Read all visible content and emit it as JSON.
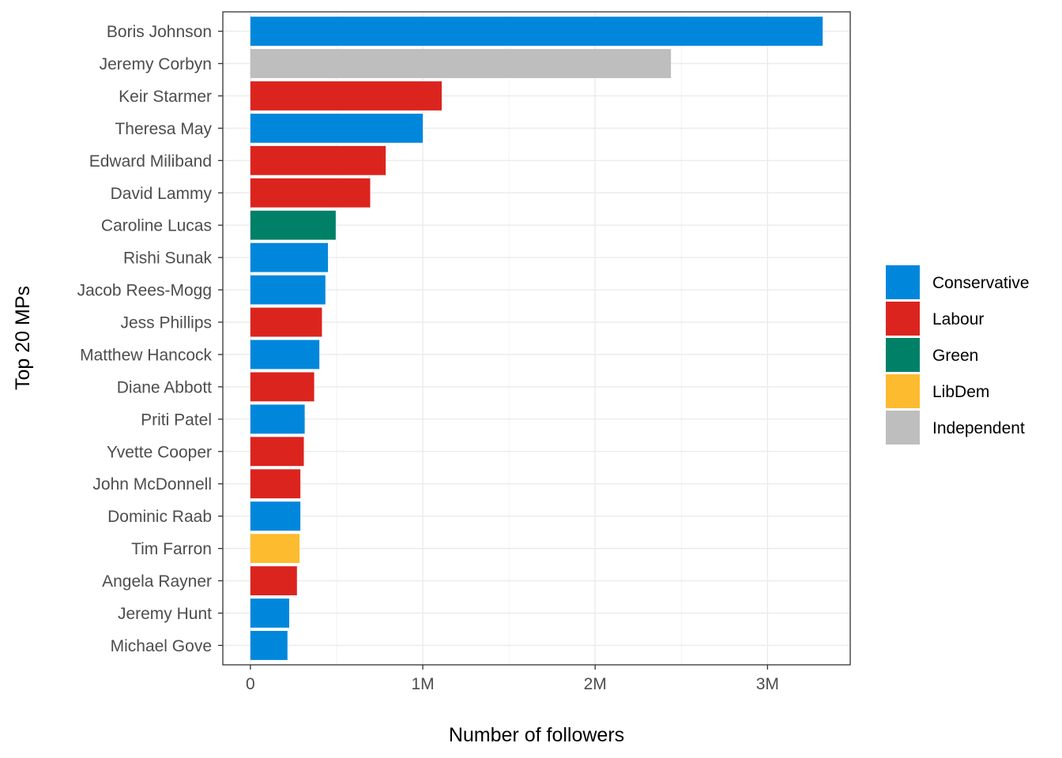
{
  "chart_data": {
    "type": "bar",
    "orientation": "horizontal",
    "xlabel": "Number of followers",
    "ylabel": "Top 20 MPs",
    "xlim": [
      -160000,
      3480000
    ],
    "x_ticks": [
      {
        "value": 0,
        "label": "0"
      },
      {
        "value": 1000000,
        "label": "1M"
      },
      {
        "value": 2000000,
        "label": "2M"
      },
      {
        "value": 3000000,
        "label": "3M"
      }
    ],
    "grid": true,
    "legend_position": "right",
    "parties": [
      {
        "name": "Conservative",
        "color": "#0087DC"
      },
      {
        "name": "Labour",
        "color": "#DC241F"
      },
      {
        "name": "Green",
        "color": "#008066"
      },
      {
        "name": "LibDem",
        "color": "#FDBB30"
      },
      {
        "name": "Independent",
        "color": "#BEBEBE"
      }
    ],
    "bars": [
      {
        "label": "Boris Johnson",
        "value": 3320000,
        "party": "Conservative"
      },
      {
        "label": "Jeremy Corbyn",
        "value": 2440000,
        "party": "Independent"
      },
      {
        "label": "Keir Starmer",
        "value": 1110000,
        "party": "Labour"
      },
      {
        "label": "Theresa May",
        "value": 1000000,
        "party": "Conservative"
      },
      {
        "label": "Edward Miliband",
        "value": 785000,
        "party": "Labour"
      },
      {
        "label": "David Lammy",
        "value": 695000,
        "party": "Labour"
      },
      {
        "label": "Caroline Lucas",
        "value": 495000,
        "party": "Green"
      },
      {
        "label": "Rishi Sunak",
        "value": 450000,
        "party": "Conservative"
      },
      {
        "label": "Jacob Rees-Mogg",
        "value": 435000,
        "party": "Conservative"
      },
      {
        "label": "Jess Phillips",
        "value": 415000,
        "party": "Labour"
      },
      {
        "label": "Matthew Hancock",
        "value": 400000,
        "party": "Conservative"
      },
      {
        "label": "Diane Abbott",
        "value": 370000,
        "party": "Labour"
      },
      {
        "label": "Priti Patel",
        "value": 315000,
        "party": "Conservative"
      },
      {
        "label": "Yvette Cooper",
        "value": 310000,
        "party": "Labour"
      },
      {
        "label": "John McDonnell",
        "value": 290000,
        "party": "Labour"
      },
      {
        "label": "Dominic Raab",
        "value": 290000,
        "party": "Conservative"
      },
      {
        "label": "Tim Farron",
        "value": 285000,
        "party": "LibDem"
      },
      {
        "label": "Angela Rayner",
        "value": 270000,
        "party": "Labour"
      },
      {
        "label": "Jeremy Hunt",
        "value": 225000,
        "party": "Conservative"
      },
      {
        "label": "Michael Gove",
        "value": 215000,
        "party": "Conservative"
      }
    ]
  }
}
